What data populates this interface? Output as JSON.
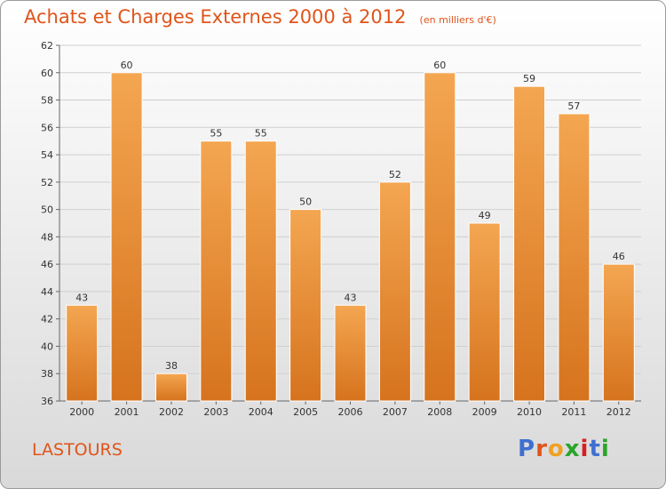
{
  "header": {
    "title": "Achats et Charges Externes 2000 à 2012",
    "unit": "(en milliers d'€)"
  },
  "footer": {
    "town": "LASTOURS",
    "logo_letters": [
      "P",
      "r",
      "o",
      "x",
      "i",
      "t",
      "i"
    ],
    "logo_colors": [
      "#3f6fd1",
      "#e0541a",
      "#f0a020",
      "#2aa52a",
      "#d62020",
      "#3f6fd1",
      "#2aa52a"
    ]
  },
  "chart_data": {
    "type": "bar",
    "title": "Achats et Charges Externes 2000 à 2012",
    "subtitle": "(en milliers d'€)",
    "categories": [
      "2000",
      "2001",
      "2002",
      "2003",
      "2004",
      "2005",
      "2006",
      "2007",
      "2008",
      "2009",
      "2010",
      "2011",
      "2012"
    ],
    "values": [
      43,
      60,
      38,
      55,
      55,
      50,
      43,
      52,
      60,
      49,
      59,
      57,
      46
    ],
    "ylim": [
      36,
      62
    ],
    "yticks": [
      36,
      38,
      40,
      42,
      44,
      46,
      48,
      50,
      52,
      54,
      56,
      58,
      60,
      62
    ],
    "grid": true,
    "bar_color_top": "#f4a651",
    "bar_color_bottom": "#d6731e",
    "accent_color": "#e0541a"
  }
}
